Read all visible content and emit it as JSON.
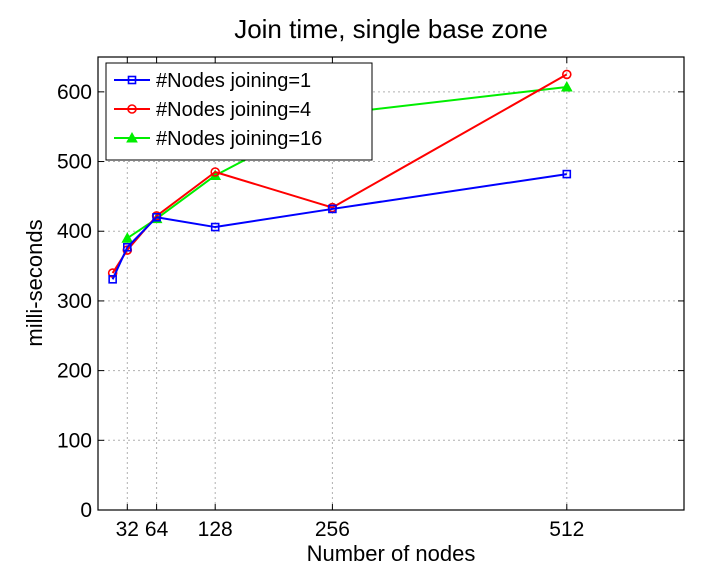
{
  "chart_data": {
    "type": "line",
    "title": "Join time, single base zone",
    "xlabel": "Number of nodes",
    "ylabel": "milli-seconds",
    "xlim": [
      0,
      640
    ],
    "ylim": [
      0,
      650
    ],
    "xticks": [
      32,
      64,
      128,
      256,
      512
    ],
    "xtick_labels": [
      "32",
      "64",
      "128",
      "256",
      "512"
    ],
    "yticks": [
      0,
      100,
      200,
      300,
      400,
      500,
      600
    ],
    "yticklabels": [
      "0",
      "100",
      "200",
      "300",
      "400",
      "500",
      "600"
    ],
    "grid": true,
    "legend_position": "top-left",
    "series": [
      {
        "name": "#Nodes joining=1",
        "color": "#0000ff",
        "marker": "square",
        "x": [
          16,
          32,
          64,
          128,
          256,
          512
        ],
        "y": [
          331,
          377,
          420,
          406,
          432,
          482
        ]
      },
      {
        "name": "#Nodes joining=4",
        "color": "#ff0000",
        "marker": "circle",
        "x": [
          16,
          32,
          64,
          128,
          256,
          512
        ],
        "y": [
          340,
          373,
          422,
          485,
          434,
          625
        ]
      },
      {
        "name": "#Nodes joining=16",
        "color": "#00ee00",
        "marker": "triangle",
        "x": [
          32,
          64,
          128,
          256,
          512
        ],
        "y": [
          390,
          418,
          480,
          568,
          607
        ]
      }
    ]
  }
}
